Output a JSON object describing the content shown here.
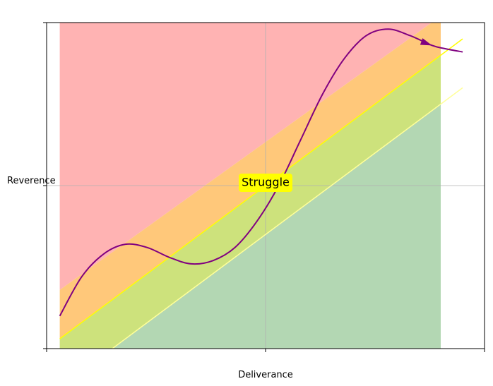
{
  "chart_data": {
    "type": "area",
    "xlabel": "Deliverance",
    "ylabel": "Reverence",
    "xlim": [
      0,
      1
    ],
    "ylim": [
      0,
      1
    ],
    "x_ticks": [
      0,
      0.5,
      1
    ],
    "y_ticks": [
      0,
      0.5,
      1
    ],
    "grid": true,
    "x_fill_range": [
      0.03,
      0.9
    ],
    "bands": [
      {
        "color": "#ffb3b3",
        "lower": "upper_edge",
        "upper": "top"
      },
      {
        "color": "#ffc87a",
        "lower": "diagonal",
        "upper": "upper_edge"
      },
      {
        "color": "#cde27c",
        "lower": "lower_edge",
        "upper": "diagonal"
      },
      {
        "color": "#b3d7b3",
        "lower": "bottom",
        "upper": "lower_edge"
      }
    ],
    "diagonal": {
      "x": [
        0.03,
        0.95
      ],
      "y": [
        0.03,
        0.95
      ],
      "color": "#ffff00"
    },
    "upper_edge": {
      "x": [
        0.03,
        0.9
      ],
      "y": [
        0.18,
        1.02
      ]
    },
    "lower_edge": {
      "x": [
        0.03,
        0.95
      ],
      "y": [
        -0.12,
        0.8
      ],
      "color": "#ffff99"
    },
    "journey": {
      "color": "#800080",
      "x": [
        0.03,
        0.08,
        0.13,
        0.18,
        0.23,
        0.28,
        0.33,
        0.38,
        0.43,
        0.48,
        0.53,
        0.58,
        0.63,
        0.68,
        0.73,
        0.78,
        0.83,
        0.88,
        0.91,
        0.95
      ],
      "y": [
        0.1,
        0.22,
        0.29,
        0.32,
        0.31,
        0.28,
        0.26,
        0.27,
        0.31,
        0.39,
        0.5,
        0.64,
        0.78,
        0.89,
        0.96,
        0.98,
        0.96,
        0.93,
        0.92,
        0.91
      ],
      "arrow_index": 17
    },
    "annotations": [
      {
        "text": "Struggle",
        "x": 0.5,
        "y": 0.5,
        "bg": "#ffff00"
      }
    ]
  }
}
